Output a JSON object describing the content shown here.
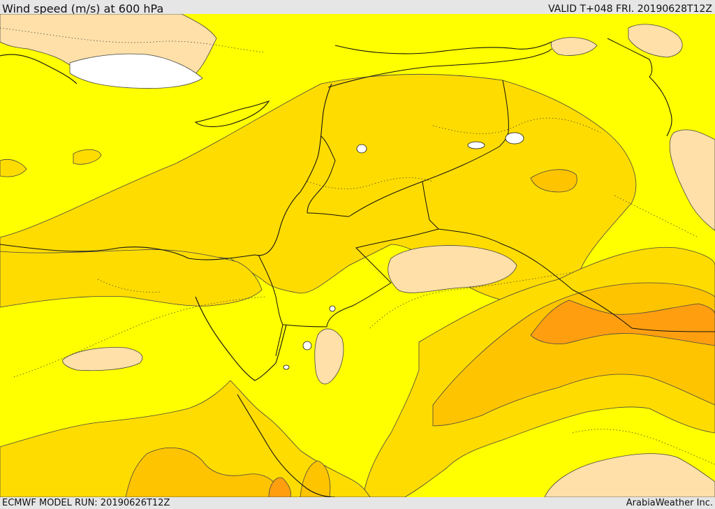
{
  "header": {
    "title": "Wind speed (m/s) at 600 hPa",
    "valid": "VALID T+048 FRI. 20190628T12Z"
  },
  "footer": {
    "model_run": "ECMWF MODEL RUN: 20190626T12Z",
    "credit": "ArabiaWeather Inc."
  },
  "colors": {
    "lowest_band": "#ffffff",
    "light_band": "#ffe0a8",
    "yellow_band": "#ffff00",
    "gold_band": "#ffdc00",
    "amber_band": "#ffc400",
    "orange_band": "#ff9f10",
    "contour": "#444444",
    "coastline": "#111111"
  }
}
